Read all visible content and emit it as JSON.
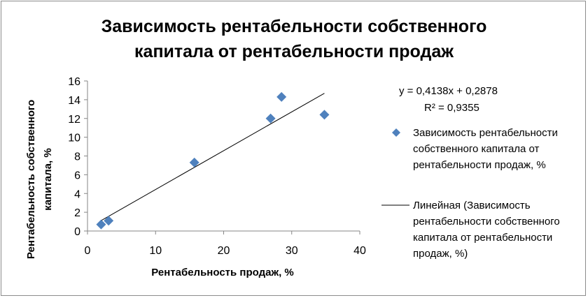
{
  "chart_data": {
    "type": "scatter",
    "title_lines": [
      "Зависимость рентабельности собственного",
      "капитала от рентабельности продаж"
    ],
    "xlabel": "Рентабельность продаж, %",
    "ylabel_lines": [
      "Рентабельность собственного",
      "капитала, %"
    ],
    "xlim": [
      0,
      40
    ],
    "ylim": [
      0,
      16
    ],
    "x_ticks": [
      0,
      10,
      20,
      30,
      40
    ],
    "y_ticks": [
      0,
      2,
      4,
      6,
      8,
      10,
      12,
      14,
      16
    ],
    "grid": false,
    "legend_position": "right",
    "series": [
      {
        "name": "Зависимость рентабельности собственного капитала от рентабельности продаж, %",
        "legend_lines": [
          "Зависимость рентабельности",
          "собственного капитала от",
          "рентабельности продаж, %"
        ],
        "color": "#4f81bd",
        "marker": "diamond",
        "points": [
          {
            "x": 2.0,
            "y": 0.7
          },
          {
            "x": 3.1,
            "y": 1.1
          },
          {
            "x": 15.7,
            "y": 7.3
          },
          {
            "x": 26.9,
            "y": 12.0
          },
          {
            "x": 28.5,
            "y": 14.3
          },
          {
            "x": 34.8,
            "y": 12.4
          }
        ]
      }
    ],
    "trendline": {
      "name": "Линейная (Зависимость рентабельности собственного капитала от рентабельности продаж, %)",
      "legend_lines": [
        "Линейная (Зависимость",
        "рентабельности собственного",
        "капитала от рентабельности",
        "продаж, %)"
      ],
      "type": "linear",
      "slope": 0.4138,
      "intercept": 0.2878,
      "x_range": [
        2.0,
        34.8
      ],
      "color": "#000000",
      "equation": "y = 0,4138x + 0,2878",
      "r_squared": "R² = 0,9355"
    }
  }
}
